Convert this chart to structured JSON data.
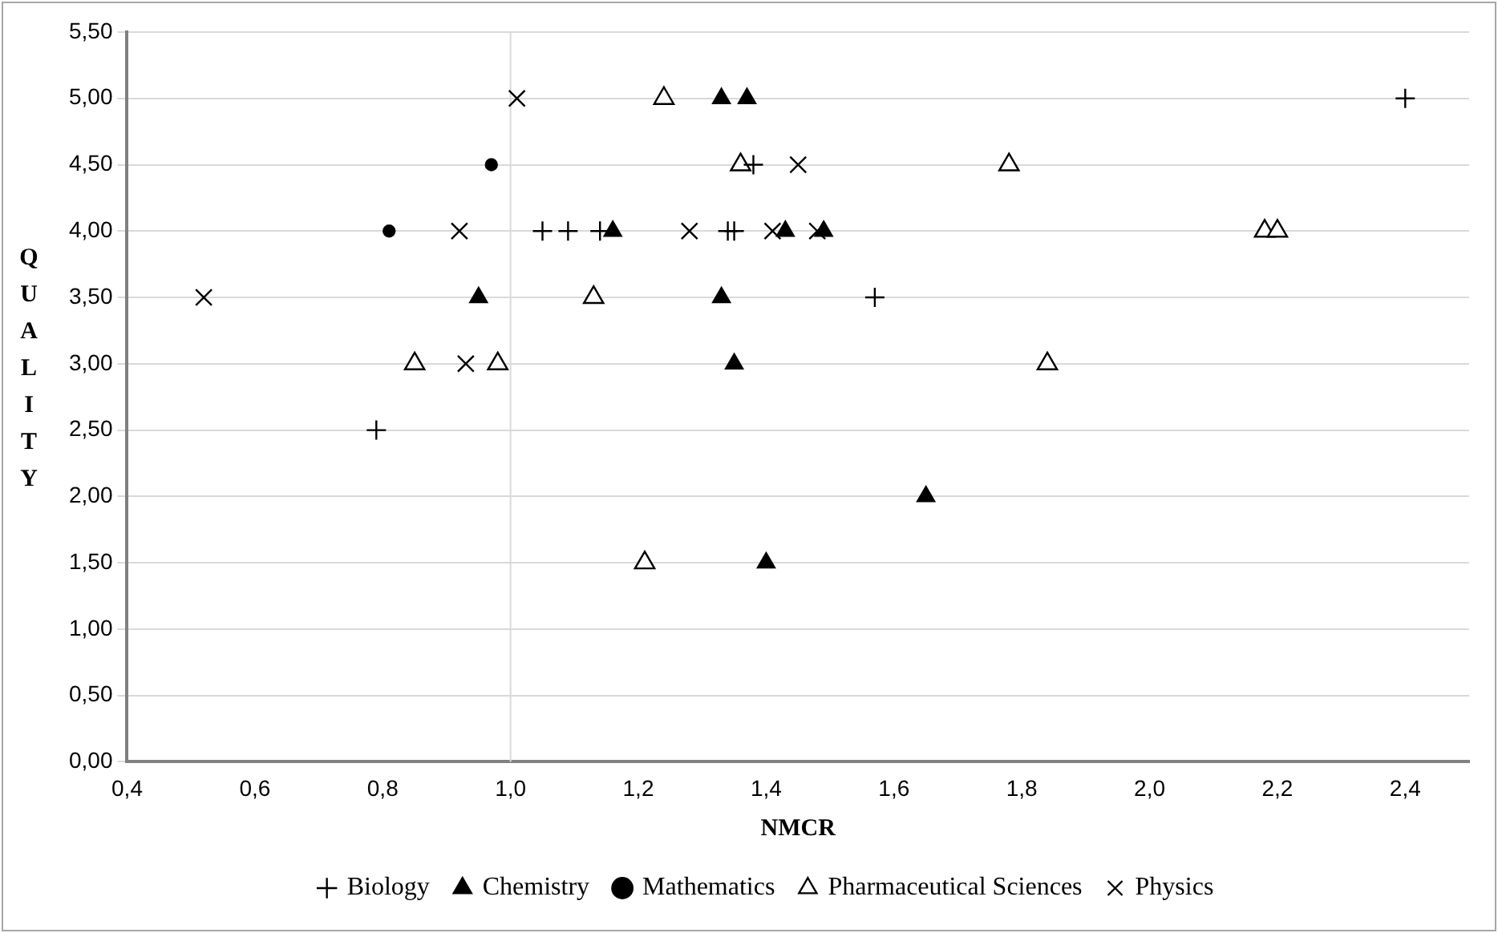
{
  "chart_data": {
    "type": "scatter",
    "xlabel": "NMCR",
    "ylabel": "QUALITY",
    "xlim": [
      0.4,
      2.5
    ],
    "xticks": [
      {
        "value": 0.4,
        "label": "0,4"
      },
      {
        "value": 0.6,
        "label": "0,6"
      },
      {
        "value": 0.8,
        "label": "0,8"
      },
      {
        "value": 1.0,
        "label": "1,0"
      },
      {
        "value": 1.2,
        "label": "1,2"
      },
      {
        "value": 1.4,
        "label": "1,4"
      },
      {
        "value": 1.6,
        "label": "1,6"
      },
      {
        "value": 1.8,
        "label": "1,8"
      },
      {
        "value": 2.0,
        "label": "2,0"
      },
      {
        "value": 2.2,
        "label": "2,2"
      },
      {
        "value": 2.4,
        "label": "2,4"
      }
    ],
    "ylim": [
      0,
      5.5
    ],
    "yticks": [
      {
        "value": 0,
        "label": "0,00"
      },
      {
        "value": 0.5,
        "label": "0,50"
      },
      {
        "value": 1,
        "label": "1,00"
      },
      {
        "value": 1.5,
        "label": "1,50"
      },
      {
        "value": 2,
        "label": "2,00"
      },
      {
        "value": 2.5,
        "label": "2,50"
      },
      {
        "value": 3,
        "label": "3,00"
      },
      {
        "value": 3.5,
        "label": "3,50"
      },
      {
        "value": 4,
        "label": "4,00"
      },
      {
        "value": 4.5,
        "label": "4,50"
      },
      {
        "value": 5,
        "label": "5,00"
      },
      {
        "value": 5.5,
        "label": "5,50"
      }
    ],
    "grid": "y",
    "legend": "bottom",
    "ref_lines": [
      {
        "axis": "x",
        "value": 1.0,
        "color": "#d9d9d9"
      }
    ],
    "series": [
      {
        "name": "Biology",
        "color": "#000000",
        "marker": "plus",
        "x": [
          0.79,
          1.05,
          1.09,
          1.14,
          1.34,
          1.35,
          1.38,
          1.57,
          2.4
        ],
        "values": [
          2.5,
          4,
          4,
          4,
          4,
          4,
          4.5,
          3.5,
          5
        ]
      },
      {
        "name": "Chemistry",
        "color": "#000000",
        "marker": "triangle",
        "x": [
          0.95,
          1.16,
          1.33,
          1.35,
          1.33,
          1.37,
          1.4,
          1.43,
          1.49,
          1.65
        ],
        "values": [
          3.5,
          4,
          5,
          3,
          3.5,
          5,
          1.5,
          4,
          4,
          2
        ]
      },
      {
        "name": "Mathematics",
        "color": "#000000",
        "marker": "circle",
        "x": [
          0.81,
          0.97
        ],
        "values": [
          4,
          4.5
        ]
      },
      {
        "name": "Pharmaceutical Sciences",
        "color": "#000000",
        "marker": "triangle-open",
        "x": [
          0.85,
          0.98,
          1.13,
          1.21,
          1.24,
          1.36,
          1.78,
          1.84,
          2.18,
          2.2
        ],
        "values": [
          3,
          3,
          3.5,
          1.5,
          5,
          4.5,
          4.5,
          3,
          4,
          4
        ]
      },
      {
        "name": "Physics",
        "color": "#000000",
        "marker": "cross",
        "x": [
          0.52,
          0.92,
          0.93,
          1.01,
          1.28,
          1.41,
          1.45,
          1.48
        ],
        "values": [
          3.5,
          4,
          3,
          5,
          4,
          4,
          4.5,
          4
        ]
      }
    ]
  }
}
